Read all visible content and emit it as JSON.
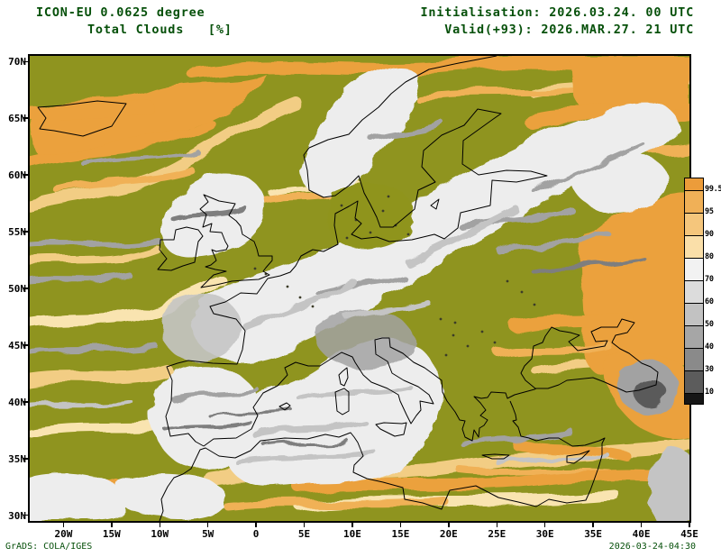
{
  "header": {
    "model": "ICON-EU 0.0625 degree",
    "field": "Total Clouds   [%]",
    "initialisation": "Initialisation: 2026.03.24. 00 UTC",
    "valid": "Valid(+93): 2026.MAR.27. 21 UTC"
  },
  "map": {
    "x_ticks": [
      "20W",
      "15W",
      "10W",
      "5W",
      "0",
      "5E",
      "10E",
      "15E",
      "20E",
      "25E",
      "30E",
      "35E",
      "40E",
      "45E"
    ],
    "y_ticks": [
      "70N",
      "65N",
      "60N",
      "55N",
      "50N",
      "45N",
      "40N",
      "35N",
      "30N"
    ]
  },
  "colorbar": {
    "labels": [
      "99.5",
      "95",
      "90",
      "80",
      "70",
      "60",
      "50",
      "40",
      "30",
      "10"
    ],
    "colors": [
      "#ec9c3a",
      "#f0b057",
      "#f5c67c",
      "#fadfa9",
      "#f2f2f2",
      "#dcdcdc",
      "#c2c2c2",
      "#a6a6a6",
      "#8a8a8a",
      "#5c5c5c",
      "#161616"
    ]
  },
  "footer": {
    "left": "GrADS: COLA/IGES",
    "right": "2026-03-24-04:30"
  },
  "colors": {
    "clear_land": "#8f941f",
    "title_text": "#06500a",
    "axis_text": "#000000",
    "footer_text": "#06500a",
    "cloud_orange": "#eba13c",
    "cloud_white": "#ededed"
  }
}
